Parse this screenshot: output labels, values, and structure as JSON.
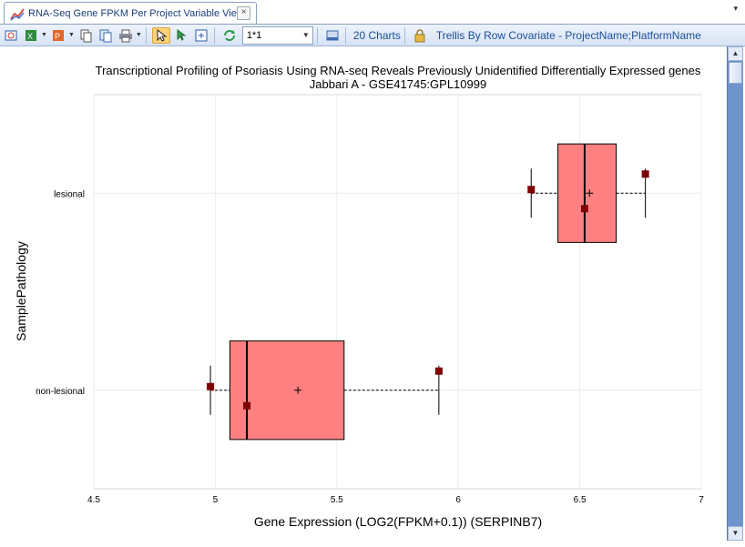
{
  "tab": {
    "title": "RNA-Seq Gene FPKM Per Project Variable View",
    "close_label": "×",
    "menu_label": "▾"
  },
  "toolbar": {
    "layout_value": "1*1",
    "charts_label": "20 Charts",
    "trellis_label": "Trellis By Row Covariate - ProjectName;PlatformName"
  },
  "colors": {
    "box_fill": "#ff8080",
    "point": "#800000",
    "toolbar_text": "#1e4f9a"
  },
  "chart_data": {
    "type": "box",
    "orientation": "horizontal",
    "title": "Transcriptional Profiling of Psoriasis Using RNA-seq Reveals Previously Unidentified Differentially Expressed genes",
    "subtitle": "Jabbari A - GSE41745:GPL10999",
    "xlabel": "Gene Expression (LOG2(FPKM+0.1)) (SERPINB7)",
    "ylabel": "SamplePathology",
    "xlim": [
      4.5,
      7
    ],
    "xticks": [
      4.5,
      5,
      5.5,
      6,
      6.5,
      7
    ],
    "xtick_labels": [
      "4.5",
      "5",
      "5.5",
      "6",
      "6.5",
      "7"
    ],
    "grid": true,
    "categories": [
      "lesional",
      "non-lesional"
    ],
    "boxes": [
      {
        "category": "lesional",
        "whisker_low": 6.3,
        "q1": 6.41,
        "median": 6.52,
        "mean": 6.54,
        "q3": 6.65,
        "whisker_high": 6.77,
        "points": [
          6.3,
          6.52,
          6.77
        ]
      },
      {
        "category": "non-lesional",
        "whisker_low": 4.98,
        "q1": 5.06,
        "median": 5.13,
        "mean": 5.34,
        "q3": 5.53,
        "whisker_high": 5.92,
        "points": [
          4.98,
          5.13,
          5.92
        ]
      }
    ]
  }
}
